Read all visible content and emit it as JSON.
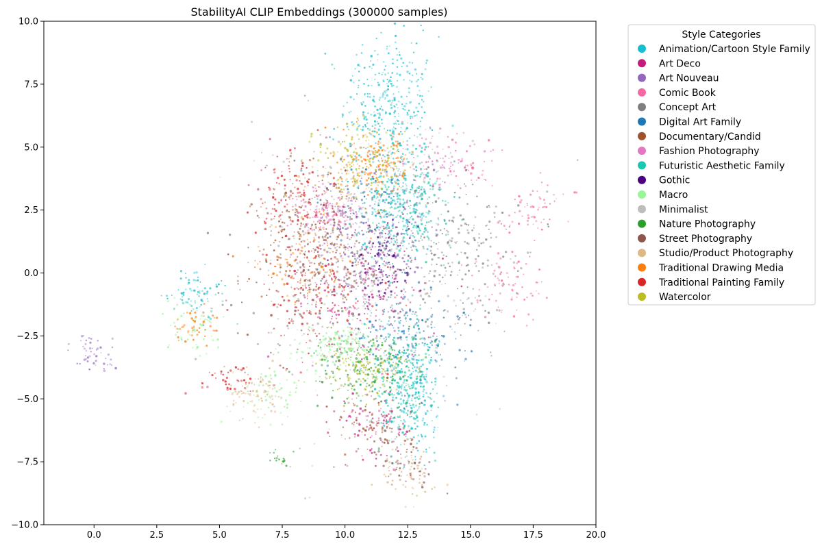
{
  "chart_data": {
    "type": "scatter",
    "title": "StabilityAI CLIP Embeddings (300000 samples)",
    "xlim": [
      -2.0,
      20.0
    ],
    "ylim": [
      -10.0,
      10.0
    ],
    "xticks": [
      0.0,
      2.5,
      5.0,
      7.5,
      10.0,
      12.5,
      15.0,
      17.5,
      20.0
    ],
    "yticks": [
      -10.0,
      -7.5,
      -5.0,
      -2.5,
      0.0,
      2.5,
      5.0,
      7.5,
      10.0
    ],
    "xtick_labels": [
      "0.0",
      "2.5",
      "5.0",
      "7.5",
      "10.0",
      "12.5",
      "15.0",
      "17.5",
      "20.0"
    ],
    "ytick_labels": [
      "−10.0",
      "−7.5",
      "−5.0",
      "−2.5",
      "0.0",
      "2.5",
      "5.0",
      "7.5",
      "10.0"
    ],
    "grid": false,
    "legend": {
      "title": "Style Categories",
      "placement": "outside-right-top",
      "items": [
        {
          "name": "Animation/Cartoon Style Family",
          "color": "#17becf"
        },
        {
          "name": "Art Deco",
          "color": "#c51b7d"
        },
        {
          "name": "Art Nouveau",
          "color": "#9467bd"
        },
        {
          "name": "Comic Book",
          "color": "#f768a1"
        },
        {
          "name": "Concept Art",
          "color": "#7f7f7f"
        },
        {
          "name": "Digital Art Family",
          "color": "#1f77b4"
        },
        {
          "name": "Documentary/Candid",
          "color": "#a0522d"
        },
        {
          "name": "Fashion Photography",
          "color": "#e377c2"
        },
        {
          "name": "Futuristic Aesthetic Family",
          "color": "#1ac8b0"
        },
        {
          "name": "Gothic",
          "color": "#4b0082"
        },
        {
          "name": "Macro",
          "color": "#98f598"
        },
        {
          "name": "Minimalist",
          "color": "#bdbdbd"
        },
        {
          "name": "Nature Photography",
          "color": "#2ca02c"
        },
        {
          "name": "Street Photography",
          "color": "#8c564b"
        },
        {
          "name": "Studio/Product Photography",
          "color": "#deb887"
        },
        {
          "name": "Traditional Drawing Media",
          "color": "#ff7f0e"
        },
        {
          "name": "Traditional Painting Family",
          "color": "#d62728"
        },
        {
          "name": "Watercolor",
          "color": "#bcbd22"
        }
      ]
    },
    "clusters": [
      {
        "series": "Animation/Cartoon Style Family",
        "center": [
          11.8,
          6.8
        ],
        "spread": [
          0.9,
          1.3
        ],
        "n": 320
      },
      {
        "series": "Animation/Cartoon Style Family",
        "center": [
          12.7,
          -5.0
        ],
        "spread": [
          0.5,
          1.1
        ],
        "n": 200
      },
      {
        "series": "Animation/Cartoon Style Family",
        "center": [
          4.0,
          -0.8
        ],
        "spread": [
          0.5,
          0.5
        ],
        "n": 80
      },
      {
        "series": "Animation/Cartoon Style Family",
        "center": [
          12.0,
          2.5
        ],
        "spread": [
          0.8,
          1.0
        ],
        "n": 140
      },
      {
        "series": "Art Deco",
        "center": [
          10.8,
          -1.0
        ],
        "spread": [
          1.2,
          1.1
        ],
        "n": 170
      },
      {
        "series": "Art Deco",
        "center": [
          11.2,
          -6.0
        ],
        "spread": [
          0.8,
          0.8
        ],
        "n": 90
      },
      {
        "series": "Art Nouveau",
        "center": [
          10.8,
          1.2
        ],
        "spread": [
          1.2,
          1.2
        ],
        "n": 140
      },
      {
        "series": "Art Nouveau",
        "center": [
          0.0,
          -3.2
        ],
        "spread": [
          0.5,
          0.4
        ],
        "n": 50
      },
      {
        "series": "Comic Book",
        "center": [
          16.5,
          -0.5
        ],
        "spread": [
          0.7,
          0.8
        ],
        "n": 70
      },
      {
        "series": "Comic Book",
        "center": [
          17.5,
          2.5
        ],
        "spread": [
          0.6,
          0.6
        ],
        "n": 60
      },
      {
        "series": "Comic Book",
        "center": [
          14.8,
          4.3
        ],
        "spread": [
          0.6,
          0.5
        ],
        "n": 50
      },
      {
        "series": "Concept Art",
        "center": [
          14.2,
          1.0
        ],
        "spread": [
          1.4,
          1.6
        ],
        "n": 260
      },
      {
        "series": "Concept Art",
        "center": [
          9.5,
          0.0
        ],
        "spread": [
          1.8,
          2.0
        ],
        "n": 160
      },
      {
        "series": "Digital Art Family",
        "center": [
          12.5,
          -2.5
        ],
        "spread": [
          1.2,
          0.8
        ],
        "n": 200
      },
      {
        "series": "Digital Art Family",
        "center": [
          11.0,
          3.0
        ],
        "spread": [
          1.2,
          1.2
        ],
        "n": 150
      },
      {
        "series": "Documentary/Candid",
        "center": [
          8.5,
          1.0
        ],
        "spread": [
          1.0,
          1.4
        ],
        "n": 180
      },
      {
        "series": "Documentary/Candid",
        "center": [
          11.0,
          -6.0
        ],
        "spread": [
          0.8,
          0.7
        ],
        "n": 90
      },
      {
        "series": "Fashion Photography",
        "center": [
          9.3,
          2.5
        ],
        "spread": [
          0.6,
          0.5
        ],
        "n": 150
      },
      {
        "series": "Fashion Photography",
        "center": [
          13.2,
          4.5
        ],
        "spread": [
          0.8,
          0.6
        ],
        "n": 70
      },
      {
        "series": "Futuristic Aesthetic Family",
        "center": [
          12.5,
          2.8
        ],
        "spread": [
          0.8,
          1.2
        ],
        "n": 250
      },
      {
        "series": "Futuristic Aesthetic Family",
        "center": [
          12.4,
          -4.2
        ],
        "spread": [
          0.6,
          1.2
        ],
        "n": 220
      },
      {
        "series": "Gothic",
        "center": [
          11.5,
          0.5
        ],
        "spread": [
          0.7,
          0.8
        ],
        "n": 160
      },
      {
        "series": "Macro",
        "center": [
          9.8,
          -2.9
        ],
        "spread": [
          0.9,
          0.5
        ],
        "n": 160
      },
      {
        "series": "Macro",
        "center": [
          7.2,
          -4.8
        ],
        "spread": [
          0.6,
          0.5
        ],
        "n": 60
      },
      {
        "series": "Macro",
        "center": [
          4.0,
          -2.2
        ],
        "spread": [
          0.6,
          0.5
        ],
        "n": 60
      },
      {
        "series": "Minimalist",
        "center": [
          11.0,
          0.0
        ],
        "spread": [
          2.4,
          3.2
        ],
        "n": 240
      },
      {
        "series": "Nature Photography",
        "center": [
          11.0,
          -3.8
        ],
        "spread": [
          1.1,
          0.7
        ],
        "n": 200
      },
      {
        "series": "Nature Photography",
        "center": [
          7.5,
          -7.4
        ],
        "spread": [
          0.3,
          0.2
        ],
        "n": 20
      },
      {
        "series": "Street Photography",
        "center": [
          9.0,
          1.0
        ],
        "spread": [
          1.4,
          1.6
        ],
        "n": 170
      },
      {
        "series": "Street Photography",
        "center": [
          12.5,
          -7.5
        ],
        "spread": [
          0.6,
          0.6
        ],
        "n": 60
      },
      {
        "series": "Studio/Product Photography",
        "center": [
          6.5,
          -4.8
        ],
        "spread": [
          0.6,
          0.5
        ],
        "n": 90
      },
      {
        "series": "Studio/Product Photography",
        "center": [
          12.5,
          -8.0
        ],
        "spread": [
          0.5,
          0.5
        ],
        "n": 60
      },
      {
        "series": "Traditional Drawing Media",
        "center": [
          11.2,
          4.3
        ],
        "spread": [
          0.8,
          0.6
        ],
        "n": 170
      },
      {
        "series": "Traditional Drawing Media",
        "center": [
          8.8,
          0.6
        ],
        "spread": [
          1.0,
          1.0
        ],
        "n": 100
      },
      {
        "series": "Traditional Drawing Media",
        "center": [
          4.0,
          -2.0
        ],
        "spread": [
          0.4,
          0.4
        ],
        "n": 50
      },
      {
        "series": "Traditional Painting Family",
        "center": [
          8.0,
          3.2
        ],
        "spread": [
          0.8,
          1.0
        ],
        "n": 160
      },
      {
        "series": "Traditional Painting Family",
        "center": [
          9.0,
          -1.0
        ],
        "spread": [
          1.3,
          1.3
        ],
        "n": 130
      },
      {
        "series": "Traditional Painting Family",
        "center": [
          5.5,
          -4.3
        ],
        "spread": [
          0.6,
          0.3
        ],
        "n": 40
      },
      {
        "series": "Watercolor",
        "center": [
          10.5,
          4.5
        ],
        "spread": [
          1.0,
          0.8
        ],
        "n": 140
      },
      {
        "series": "Watercolor",
        "center": [
          10.8,
          -3.8
        ],
        "spread": [
          0.9,
          0.6
        ],
        "n": 120
      }
    ]
  }
}
